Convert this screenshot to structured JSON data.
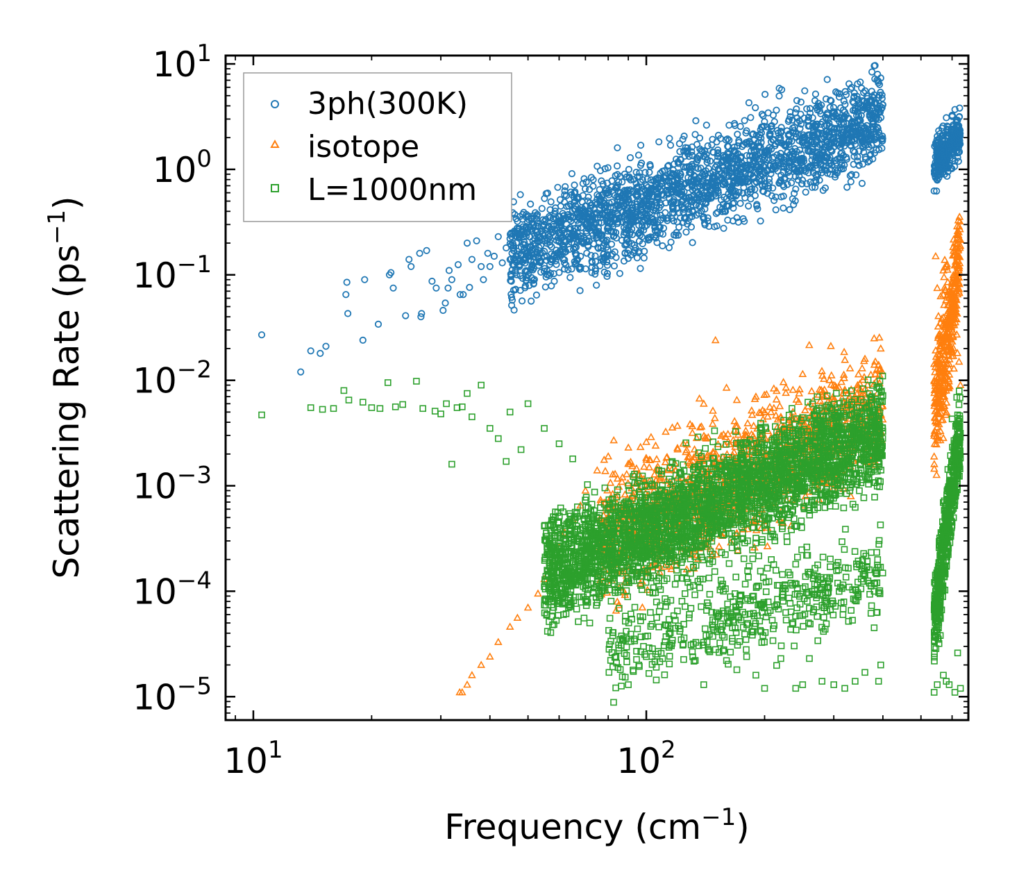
{
  "chart_data": {
    "type": "scatter",
    "xscale": "log",
    "yscale": "log",
    "xlim": [
      8.5,
      660
    ],
    "ylim": [
      6e-06,
      12
    ],
    "xlabel": "Frequency (cm",
    "xlabel_sup": "−1",
    "xlabel_end": ")",
    "ylabel": "Scattering Rate (ps",
    "ylabel_sup": "−1",
    "ylabel_end": ")",
    "x_major_ticks": [
      {
        "value": 10,
        "base": "10",
        "exp": "1"
      },
      {
        "value": 100,
        "base": "10",
        "exp": "2"
      }
    ],
    "y_major_ticks": [
      {
        "value": 10,
        "base": "10",
        "exp": "1"
      },
      {
        "value": 1,
        "base": "10",
        "exp": "0"
      },
      {
        "value": 0.1,
        "base": "10",
        "exp": "−1"
      },
      {
        "value": 0.01,
        "base": "10",
        "exp": "−2"
      },
      {
        "value": 0.001,
        "base": "10",
        "exp": "−3"
      },
      {
        "value": 0.0001,
        "base": "10",
        "exp": "−4"
      },
      {
        "value": 1e-05,
        "base": "10",
        "exp": "−5"
      }
    ],
    "legend_position": "top-left",
    "series": [
      {
        "name": "3ph(300K)",
        "marker": "circle",
        "color": "#1f77b4",
        "points": [
          [
            10.5,
            0.027
          ],
          [
            13.2,
            0.012
          ],
          [
            14,
            0.019
          ],
          [
            14.8,
            0.018
          ],
          [
            15.3,
            0.021
          ],
          [
            17.2,
            0.065
          ],
          [
            17.3,
            0.085
          ],
          [
            17.4,
            0.043
          ],
          [
            19,
            0.024
          ],
          [
            19.2,
            0.09
          ],
          [
            20.8,
            0.034
          ],
          [
            22.2,
            0.1
          ],
          [
            22.4,
            0.105
          ],
          [
            22.7,
            0.075
          ],
          [
            24.4,
            0.041
          ],
          [
            24.9,
            0.14
          ],
          [
            25.2,
            0.12
          ],
          [
            26.5,
            0.16
          ],
          [
            26.7,
            0.04
          ],
          [
            26.8,
            0.043
          ],
          [
            27.6,
            0.17
          ],
          [
            28.5,
            0.087
          ],
          [
            29.2,
            0.075
          ],
          [
            30.4,
            0.046
          ],
          [
            30.8,
            0.054
          ],
          [
            31.3,
            0.075
          ],
          [
            31.5,
            0.11
          ],
          [
            32,
            0.09
          ],
          [
            33.2,
            0.125
          ],
          [
            33.6,
            0.065
          ],
          [
            34.2,
            0.065
          ],
          [
            35,
            0.2
          ],
          [
            35.5,
            0.076
          ],
          [
            36,
            0.14
          ],
          [
            37,
            0.21
          ],
          [
            38,
            0.12
          ],
          [
            38.5,
            0.09
          ],
          [
            39.5,
            0.16
          ],
          [
            40,
            0.12
          ],
          [
            41,
            0.15
          ],
          [
            42,
            0.23
          ],
          [
            43,
            0.13
          ],
          [
            44,
            0.18
          ],
          [
            45,
            0.22
          ],
          [
            46,
            0.18
          ],
          [
            48,
            0.24
          ],
          [
            50,
            0.27
          ],
          [
            52,
            0.22
          ],
          [
            55,
            0.32
          ],
          [
            58,
            0.3
          ],
          [
            60,
            0.36
          ],
          [
            63,
            0.37
          ],
          [
            66,
            0.42
          ],
          [
            70,
            0.45
          ],
          [
            72,
            0.43
          ],
          [
            75,
            0.52
          ],
          [
            78,
            0.48
          ],
          [
            80,
            0.6
          ],
          [
            85,
            0.55
          ],
          [
            90,
            0.62
          ],
          [
            95,
            0.85
          ],
          [
            100,
            0.7
          ],
          [
            105,
            0.68
          ],
          [
            110,
            0.78
          ],
          [
            115,
            0.85
          ],
          [
            120,
            0.8
          ],
          [
            130,
            0.92
          ],
          [
            140,
            0.95
          ],
          [
            150,
            1.05
          ],
          [
            160,
            1.15
          ],
          [
            170,
            1.1
          ],
          [
            180,
            1.35
          ],
          [
            190,
            1.3
          ],
          [
            200,
            1.45
          ],
          [
            210,
            1.9
          ],
          [
            220,
            2.3
          ],
          [
            230,
            2.1
          ],
          [
            240,
            0.65
          ],
          [
            250,
            1.9
          ],
          [
            260,
            2.1
          ],
          [
            280,
            2.2
          ],
          [
            300,
            3.2
          ],
          [
            320,
            3.5
          ],
          [
            340,
            3.6
          ],
          [
            360,
            3.8
          ],
          [
            380,
            4.2
          ],
          [
            390,
            4.8
          ],
          [
            400,
            4.1
          ],
          [
            550,
            1.8
          ],
          [
            560,
            1.6
          ],
          [
            570,
            2.1
          ],
          [
            580,
            1.7
          ],
          [
            590,
            1.5
          ],
          [
            600,
            1.4
          ],
          [
            610,
            1.2
          ],
          [
            620,
            1.3
          ]
        ],
        "bands": [
          {
            "x": [
              45,
              400
            ],
            "y": [
              0.15,
              3.2
            ],
            "n": 2200,
            "spread": 0.22
          },
          {
            "x": [
              540,
              630
            ],
            "y": [
              1.1,
              2.3
            ],
            "n": 300,
            "spread": 0.12
          }
        ]
      },
      {
        "name": "isotope",
        "marker": "triangle",
        "color": "#ff7f0e",
        "points": [
          [
            33.5,
            1.1e-05
          ],
          [
            34,
            1.1e-05
          ],
          [
            35,
            1.3e-05
          ],
          [
            36,
            1.6e-05
          ],
          [
            38,
            2e-05
          ],
          [
            40,
            2.4e-05
          ],
          [
            42,
            3.3e-05
          ],
          [
            45,
            4.6e-05
          ],
          [
            47,
            5.6e-05
          ],
          [
            50,
            7e-05
          ],
          [
            53,
            9.5e-05
          ],
          [
            55,
            0.00013
          ],
          [
            58,
            0.0002
          ],
          [
            60,
            0.00026
          ],
          [
            62,
            0.00036
          ],
          [
            65,
            0.00048
          ],
          [
            68,
            0.00065
          ],
          [
            70,
            0.0009
          ],
          [
            75,
            0.0014
          ],
          [
            80,
            0.0019
          ],
          [
            90,
            0.0023
          ],
          [
            100,
            0.0026
          ],
          [
            120,
            0.0037
          ],
          [
            140,
            0.006
          ],
          [
            150,
            0.024
          ],
          [
            160,
            0.0085
          ],
          [
            170,
            0.0065
          ],
          [
            190,
            0.007
          ],
          [
            200,
            0.005
          ],
          [
            220,
            0.0045
          ],
          [
            260,
            0.0028
          ],
          [
            300,
            0.009
          ],
          [
            330,
            0.013
          ],
          [
            360,
            0.016
          ],
          [
            380,
            0.025
          ],
          [
            390,
            0.014
          ],
          [
            395,
            0.02
          ],
          [
            545,
            0.15
          ],
          [
            550,
            0.075
          ],
          [
            560,
            0.02
          ],
          [
            570,
            0.11
          ],
          [
            580,
            0.008
          ],
          [
            600,
            0.05
          ],
          [
            610,
            0.2
          ],
          [
            620,
            0.26
          ],
          [
            625,
            0.015
          ],
          [
            630,
            0.009
          ]
        ],
        "bands": [
          {
            "x": [
              75,
              400
            ],
            "y": [
              0.0003,
              0.0055
            ],
            "n": 1400,
            "spread": 0.3
          },
          {
            "x": [
              540,
              630
            ],
            "y": [
              0.005,
              0.14
            ],
            "n": 420,
            "spread": 0.3
          }
        ]
      },
      {
        "name": "L=1000nm",
        "marker": "square",
        "color": "#2ca02c",
        "points": [
          [
            10.5,
            0.0047
          ],
          [
            14,
            0.0055
          ],
          [
            15,
            0.0053
          ],
          [
            16,
            0.0054
          ],
          [
            17,
            0.008
          ],
          [
            17.5,
            0.0065
          ],
          [
            19,
            0.0062
          ],
          [
            20,
            0.0055
          ],
          [
            21,
            0.0054
          ],
          [
            22,
            0.0095
          ],
          [
            23,
            0.0056
          ],
          [
            24,
            0.0059
          ],
          [
            26,
            0.0098
          ],
          [
            27,
            0.0054
          ],
          [
            29,
            0.0051
          ],
          [
            30,
            0.0048
          ],
          [
            31,
            0.006
          ],
          [
            32,
            0.0016
          ],
          [
            33,
            0.0055
          ],
          [
            34,
            0.0056
          ],
          [
            35,
            0.0075
          ],
          [
            36,
            0.0045
          ],
          [
            38,
            0.009
          ],
          [
            40,
            0.0035
          ],
          [
            42,
            0.0028
          ],
          [
            44,
            0.0017
          ],
          [
            45,
            0.005
          ],
          [
            48,
            0.0022
          ],
          [
            50,
            0.006
          ],
          [
            55,
            0.0035
          ],
          [
            60,
            0.0025
          ],
          [
            65,
            0.0018
          ],
          [
            70,
            0.00013
          ],
          [
            75,
            7.8e-05
          ],
          [
            80,
            0.00012
          ],
          [
            85,
            3.1e-05
          ],
          [
            90,
            1.3e-05
          ],
          [
            95,
            4.4e-05
          ],
          [
            100,
            2.4e-05
          ],
          [
            110,
            2.3e-05
          ],
          [
            120,
            6.5e-05
          ],
          [
            130,
            3.1e-05
          ],
          [
            140,
            1.3e-05
          ],
          [
            150,
            2.8e-05
          ],
          [
            160,
            2.2e-05
          ],
          [
            170,
            1.8e-05
          ],
          [
            180,
            2.4e-05
          ],
          [
            190,
            1.6e-05
          ],
          [
            200,
            1.2e-05
          ],
          [
            210,
            3.4e-05
          ],
          [
            220,
            2.3e-05
          ],
          [
            240,
            1.2e-05
          ],
          [
            250,
            1.3e-05
          ],
          [
            260,
            2.3e-05
          ],
          [
            280,
            1.4e-05
          ],
          [
            300,
            1.3e-05
          ],
          [
            320,
            1.2e-05
          ],
          [
            340,
            1.4e-05
          ],
          [
            360,
            1.7e-05
          ],
          [
            380,
            4.5e-05
          ],
          [
            390,
            1.4e-05
          ],
          [
            395,
            2e-05
          ],
          [
            540,
            1.1e-05
          ],
          [
            550,
            1.3e-05
          ],
          [
            560,
            3.8e-05
          ],
          [
            570,
            1.6e-05
          ],
          [
            580,
            1.4e-05
          ],
          [
            590,
            1.3e-05
          ],
          [
            600,
            0.0043
          ],
          [
            610,
            1.1e-05
          ],
          [
            620,
            2.6e-05
          ],
          [
            630,
            1.2e-05
          ]
        ],
        "bands": [
          {
            "x": [
              55,
              400
            ],
            "y": [
              0.00015,
              0.0032
            ],
            "n": 3200,
            "spread": 0.25
          },
          {
            "x": [
              80,
              400
            ],
            "y": [
              3e-05,
              0.00015
            ],
            "n": 500,
            "spread": 0.2
          },
          {
            "x": [
              540,
              630
            ],
            "y": [
              5e-05,
              0.0035
            ],
            "n": 550,
            "spread": 0.2
          }
        ]
      }
    ]
  }
}
